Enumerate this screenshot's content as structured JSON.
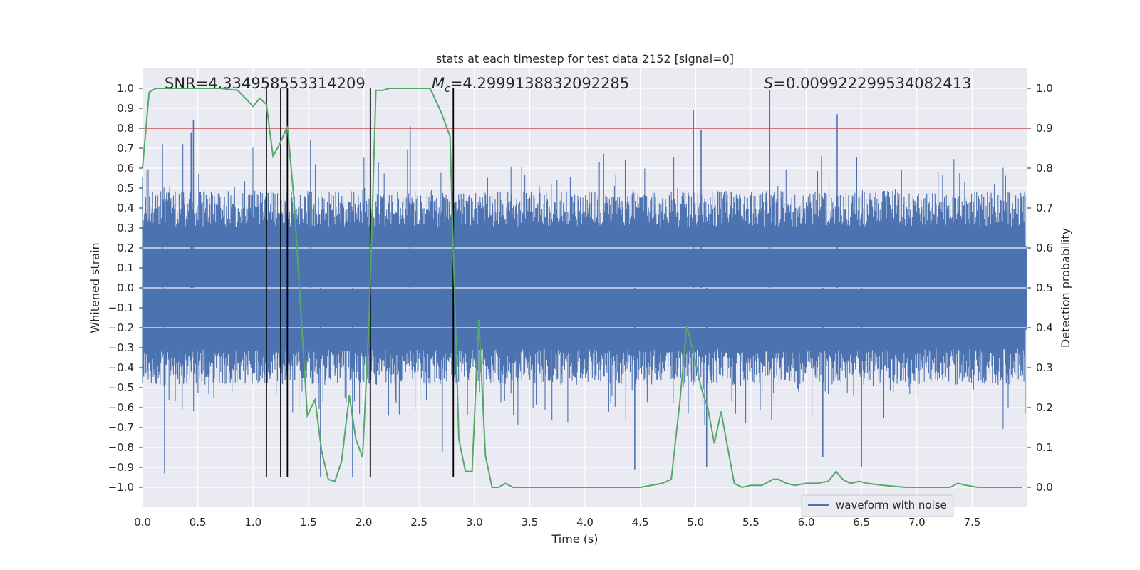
{
  "chart_data": {
    "type": "line",
    "title": "stats at each timestep for test data 2152 [signal=0]",
    "xlabel": "Time (s)",
    "ylabel": "Whitened strain",
    "ylabel_right": "Detection probability",
    "xlim": [
      0.0,
      8.0
    ],
    "ylim": [
      -1.1,
      1.1
    ],
    "ylim_right": [
      -0.05,
      1.05
    ],
    "x_ticks": [
      0.0,
      0.5,
      1.0,
      1.5,
      2.0,
      2.5,
      3.0,
      3.5,
      4.0,
      4.5,
      5.0,
      5.5,
      6.0,
      6.5,
      7.0,
      7.5
    ],
    "x_tick_labels": [
      "0.0",
      "0.5",
      "1.0",
      "1.5",
      "2.0",
      "2.5",
      "3.0",
      "3.5",
      "4.0",
      "4.5",
      "5.0",
      "5.5",
      "6.0",
      "6.5",
      "7.0",
      "7.5"
    ],
    "y_ticks": [
      1.0,
      0.9,
      0.8,
      0.7,
      0.6,
      0.5,
      0.4,
      0.3,
      0.2,
      0.1,
      0.0,
      -0.1,
      -0.2,
      -0.3,
      -0.4,
      -0.5,
      -0.6,
      -0.7,
      -0.8,
      -0.9,
      -1.0
    ],
    "y_tick_labels": [
      "1.0",
      "0.9",
      "0.8",
      "0.7",
      "0.6",
      "0.5",
      "0.4",
      "0.3",
      "0.2",
      "0.1",
      "0.0",
      "−0.1",
      "−0.2",
      "−0.3",
      "−0.4",
      "−0.5",
      "−0.6",
      "−0.7",
      "−0.8",
      "−0.9",
      "−1.0"
    ],
    "y_right_ticks": [
      1.0,
      0.9,
      0.8,
      0.7,
      0.6,
      0.5,
      0.4,
      0.3,
      0.2,
      0.1,
      0.0
    ],
    "y_right_tick_labels": [
      "1.0",
      "0.9",
      "0.8",
      "0.7",
      "0.6",
      "0.5",
      "0.4",
      "0.3",
      "0.2",
      "0.1",
      "0.0"
    ],
    "annotations": {
      "snr": "SNR=4.334958553314209",
      "mc_symbol": "M",
      "mc_sub": "c",
      "mc_value": "=4.2999138832092285",
      "s_symbol": "S",
      "s_value": "=0.009922299534082413"
    },
    "threshold_line": {
      "y": 0.8,
      "color": "#c44e52"
    },
    "vertical_markers_x": [
      1.12,
      1.25,
      1.31,
      2.06,
      2.81
    ],
    "vertical_marker_range_y": [
      -0.95,
      1.0
    ],
    "legend": {
      "label": "waveform with noise",
      "location": "lower-right"
    },
    "series": [
      {
        "name": "waveform with noise",
        "axis": "left",
        "color": "#4c72b0",
        "kind": "noise",
        "envelope_typical": 0.36,
        "spike_peaks": [
          {
            "x": 0.18,
            "y": 0.72
          },
          {
            "x": 0.2,
            "y": -0.93
          },
          {
            "x": 0.44,
            "y": 0.78
          },
          {
            "x": 0.46,
            "y": 0.84
          },
          {
            "x": 1.52,
            "y": 0.74
          },
          {
            "x": 1.61,
            "y": -0.95
          },
          {
            "x": 1.9,
            "y": -0.95
          },
          {
            "x": 2.42,
            "y": 0.81
          },
          {
            "x": 2.71,
            "y": -0.82
          },
          {
            "x": 4.45,
            "y": -0.91
          },
          {
            "x": 4.98,
            "y": 0.89
          },
          {
            "x": 5.05,
            "y": 0.79
          },
          {
            "x": 5.67,
            "y": 0.99
          },
          {
            "x": 6.28,
            "y": 0.87
          },
          {
            "x": 5.1,
            "y": -0.9
          },
          {
            "x": 6.15,
            "y": -0.85
          },
          {
            "x": 6.5,
            "y": -0.9
          }
        ]
      },
      {
        "name": "detection probability",
        "axis": "right",
        "color": "#55a868",
        "x": [
          0.0,
          0.06,
          0.12,
          0.3,
          0.5,
          0.7,
          0.86,
          1.0,
          1.06,
          1.12,
          1.18,
          1.24,
          1.31,
          1.37,
          1.43,
          1.49,
          1.56,
          1.62,
          1.68,
          1.74,
          1.8,
          1.87,
          1.93,
          1.99,
          2.05,
          2.11,
          2.17,
          2.23,
          2.3,
          2.4,
          2.5,
          2.6,
          2.7,
          2.78,
          2.86,
          2.92,
          2.98,
          3.04,
          3.1,
          3.16,
          3.22,
          3.28,
          3.35,
          3.5,
          3.7,
          3.9,
          4.1,
          4.3,
          4.5,
          4.7,
          4.78,
          4.86,
          4.92,
          4.98,
          5.05,
          5.11,
          5.17,
          5.23,
          5.29,
          5.35,
          5.42,
          5.5,
          5.6,
          5.7,
          5.75,
          5.82,
          5.9,
          6.0,
          6.1,
          6.2,
          6.27,
          6.33,
          6.4,
          6.48,
          6.55,
          6.7,
          6.9,
          7.1,
          7.3,
          7.37,
          7.45,
          7.55,
          7.65,
          7.75,
          7.85,
          7.95
        ],
        "y": [
          0.8,
          0.99,
          1.0,
          1.0,
          1.0,
          1.0,
          0.995,
          0.955,
          0.975,
          0.96,
          0.83,
          0.86,
          0.905,
          0.72,
          0.45,
          0.18,
          0.22,
          0.09,
          0.02,
          0.015,
          0.065,
          0.23,
          0.12,
          0.075,
          0.43,
          0.995,
          0.995,
          1.0,
          1.0,
          1.0,
          1.0,
          1.0,
          0.94,
          0.88,
          0.12,
          0.04,
          0.04,
          0.42,
          0.08,
          0.0,
          0.0,
          0.01,
          0.0,
          0.0,
          0.0,
          0.0,
          0.0,
          0.0,
          0.0,
          0.01,
          0.02,
          0.22,
          0.405,
          0.34,
          0.25,
          0.2,
          0.11,
          0.19,
          0.1,
          0.01,
          0.0,
          0.005,
          0.005,
          0.02,
          0.02,
          0.01,
          0.005,
          0.01,
          0.01,
          0.015,
          0.04,
          0.02,
          0.01,
          0.015,
          0.01,
          0.005,
          0.0,
          0.0,
          0.0,
          0.01,
          0.005,
          0.0,
          0.0,
          0.0,
          0.0,
          0.0
        ]
      }
    ]
  }
}
